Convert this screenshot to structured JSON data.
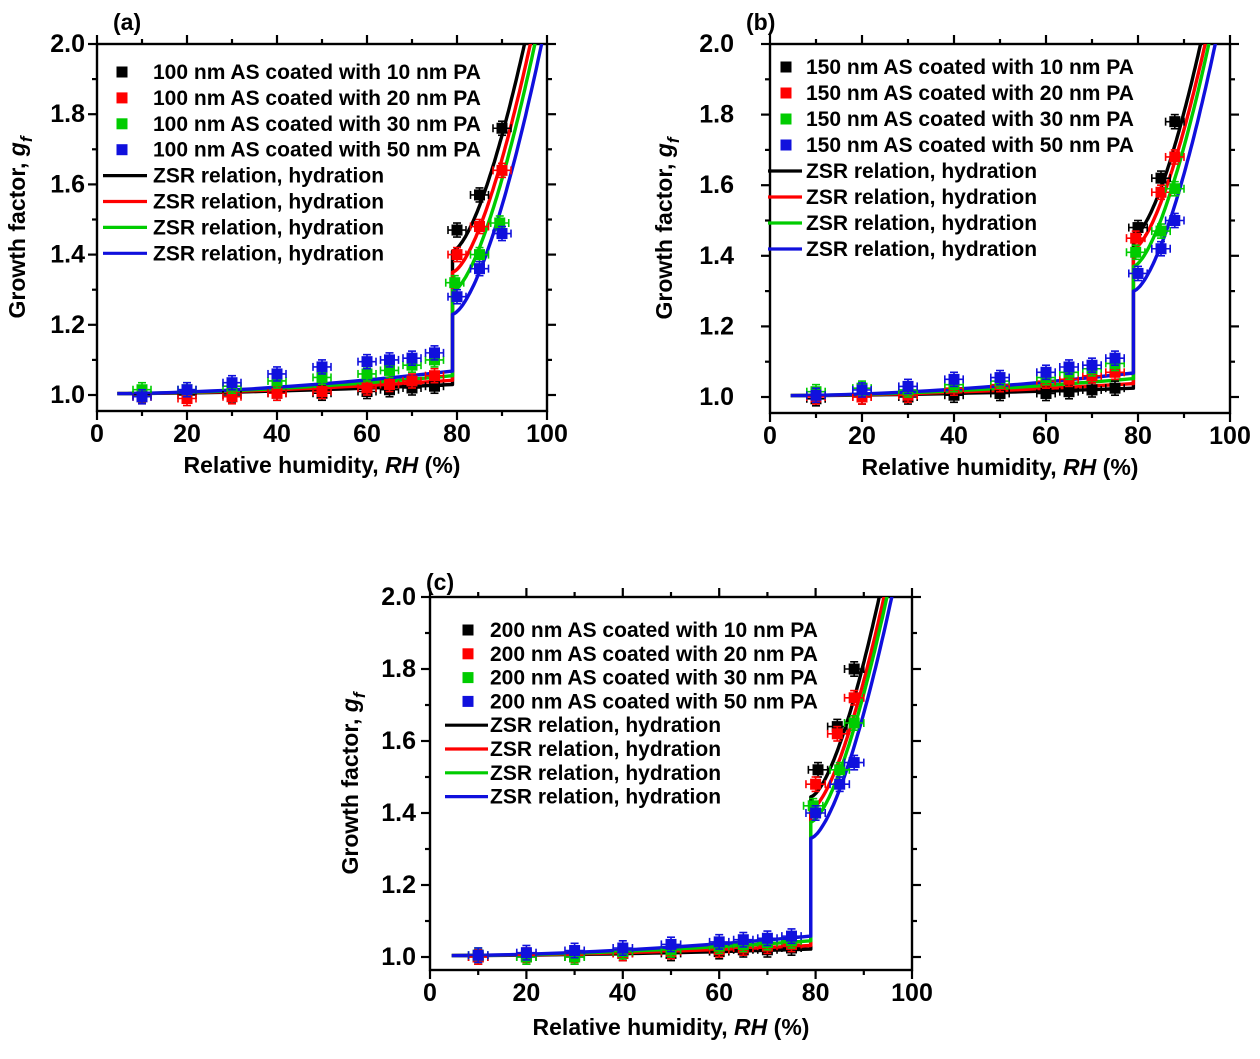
{
  "figure": {
    "background": "#ffffff",
    "description": "Hygroscopic growth factor versus relative humidity for ammonium sulfate (AS) particles coated with palmitic acid (PA); three panels for 100, 150 and 200 nm AS cores"
  },
  "colors": {
    "series1": "#000000",
    "series2": "#ff0000",
    "series3": "#00cc00",
    "series4": "#1010dd"
  },
  "chart_data": [
    {
      "type": "line+scatter",
      "panel_label": "(a)",
      "xlabel": "Relative humidity, RH (%)",
      "xlabel_parts": [
        {
          "t": "Relative humidity, "
        },
        {
          "t": "RH",
          "italic": true
        },
        {
          "t": " (%)"
        }
      ],
      "ylabel": "Growth factor, g_f",
      "ylabel_parts": [
        {
          "t": "Growth factor, "
        },
        {
          "t": "g",
          "italic": true
        },
        {
          "t": "f",
          "italic": true,
          "sub": true
        }
      ],
      "xlim": [
        0,
        100
      ],
      "ylim": [
        0.955,
        2.0
      ],
      "x_major_ticks": [
        0,
        20,
        40,
        60,
        80,
        100
      ],
      "x_minor_ticks": [
        10,
        30,
        50,
        70,
        90
      ],
      "y_major_ticks": [
        1.0,
        1.2,
        1.4,
        1.6,
        1.8,
        2.0
      ],
      "y_minor_ticks": [
        1.1,
        1.3,
        1.5,
        1.7,
        1.9
      ],
      "grid": false,
      "legend_position": "top-left-inside",
      "scatter_series": [
        {
          "label": "100 nm AS coated with 10 nm PA",
          "color": "#000000",
          "marker": "square",
          "x_err": 2,
          "y_err": 0.02,
          "points": [
            [
              10,
              1.0
            ],
            [
              20,
              1.0
            ],
            [
              30,
              1.0
            ],
            [
              40,
              1.005
            ],
            [
              50,
              1.005
            ],
            [
              60,
              1.01
            ],
            [
              65,
              1.015
            ],
            [
              70,
              1.02
            ],
            [
              75,
              1.025
            ],
            [
              80,
              1.47
            ],
            [
              85,
              1.57
            ],
            [
              90,
              1.76
            ]
          ]
        },
        {
          "label": "100 nm AS coated with 20 nm PA",
          "color": "#ff0000",
          "marker": "square",
          "x_err": 2,
          "y_err": 0.02,
          "points": [
            [
              10,
              0.995
            ],
            [
              20,
              0.99
            ],
            [
              30,
              0.995
            ],
            [
              40,
              1.005
            ],
            [
              50,
              1.01
            ],
            [
              60,
              1.02
            ],
            [
              65,
              1.03
            ],
            [
              70,
              1.04
            ],
            [
              75,
              1.055
            ],
            [
              80,
              1.4
            ],
            [
              85,
              1.48
            ],
            [
              90,
              1.64
            ]
          ]
        },
        {
          "label": "100 nm AS coated with 30 nm PA",
          "color": "#00cc00",
          "marker": "square",
          "x_err": 2,
          "y_err": 0.02,
          "points": [
            [
              10,
              1.015
            ],
            [
              20,
              1.015
            ],
            [
              30,
              1.025
            ],
            [
              40,
              1.04
            ],
            [
              50,
              1.05
            ],
            [
              60,
              1.06
            ],
            [
              65,
              1.07
            ],
            [
              70,
              1.085
            ],
            [
              75,
              1.1
            ],
            [
              79.5,
              1.32
            ],
            [
              85,
              1.4
            ],
            [
              89.5,
              1.49
            ]
          ]
        },
        {
          "label": "100 nm AS coated with 50 nm PA",
          "color": "#1010dd",
          "marker": "square",
          "x_err": 2,
          "y_err": 0.02,
          "points": [
            [
              10,
              0.995
            ],
            [
              20,
              1.015
            ],
            [
              30,
              1.035
            ],
            [
              40,
              1.06
            ],
            [
              50,
              1.08
            ],
            [
              60,
              1.095
            ],
            [
              65,
              1.1
            ],
            [
              70,
              1.105
            ],
            [
              75,
              1.12
            ],
            [
              80,
              1.28
            ],
            [
              85,
              1.36
            ],
            [
              90,
              1.46
            ]
          ]
        }
      ],
      "line_series": [
        {
          "label": "ZSR relation, hydration",
          "color": "#000000",
          "rh_start": 4.5,
          "gf_start": 1.004,
          "deliquescence_rh": 79,
          "gf_before_del": 1.03,
          "gf_after_del": 1.41,
          "rh_at_gf2": 95.0
        },
        {
          "label": "ZSR relation, hydration",
          "color": "#ff0000",
          "rh_start": 4.5,
          "gf_start": 1.004,
          "deliquescence_rh": 79,
          "gf_before_del": 1.042,
          "gf_after_del": 1.35,
          "rh_at_gf2": 96.3
        },
        {
          "label": "ZSR relation, hydration",
          "color": "#00cc00",
          "rh_start": 4.5,
          "gf_start": 1.004,
          "deliquescence_rh": 79,
          "gf_before_del": 1.055,
          "gf_after_del": 1.295,
          "rh_at_gf2": 97.3
        },
        {
          "label": "ZSR relation, hydration",
          "color": "#1010dd",
          "rh_start": 4.5,
          "gf_start": 1.004,
          "deliquescence_rh": 79,
          "gf_before_del": 1.068,
          "gf_after_del": 1.23,
          "rh_at_gf2": 98.8
        }
      ]
    },
    {
      "type": "line+scatter",
      "panel_label": "(b)",
      "xlabel": "Relative humidity, RH (%)",
      "xlabel_parts": [
        {
          "t": "Relative humidity, "
        },
        {
          "t": "RH",
          "italic": true
        },
        {
          "t": " (%)"
        }
      ],
      "ylabel": "Growth factor, g_f",
      "ylabel_parts": [
        {
          "t": "Growth factor, "
        },
        {
          "t": "g",
          "italic": true
        },
        {
          "t": "f",
          "italic": true,
          "sub": true
        }
      ],
      "xlim": [
        0,
        100
      ],
      "ylim": [
        0.955,
        2.0
      ],
      "x_major_ticks": [
        0,
        20,
        40,
        60,
        80,
        100
      ],
      "x_minor_ticks": [
        10,
        30,
        50,
        70,
        90
      ],
      "y_major_ticks": [
        1.0,
        1.2,
        1.4,
        1.6,
        1.8,
        2.0
      ],
      "y_minor_ticks": [
        1.1,
        1.3,
        1.5,
        1.7,
        1.9
      ],
      "grid": false,
      "legend_position": "top-left-inside",
      "scatter_series": [
        {
          "label": "150 nm AS coated with 10 nm PA",
          "color": "#000000",
          "marker": "square",
          "x_err": 2,
          "y_err": 0.02,
          "points": [
            [
              10,
              0.995
            ],
            [
              20,
              1.0
            ],
            [
              30,
              1.0
            ],
            [
              40,
              1.005
            ],
            [
              50,
              1.01
            ],
            [
              60,
              1.01
            ],
            [
              65,
              1.015
            ],
            [
              70,
              1.02
            ],
            [
              75,
              1.025
            ],
            [
              80,
              1.48
            ],
            [
              85,
              1.62
            ],
            [
              88,
              1.78
            ]
          ]
        },
        {
          "label": "150 nm AS coated with 20 nm PA",
          "color": "#ff0000",
          "marker": "square",
          "x_err": 2,
          "y_err": 0.02,
          "points": [
            [
              10,
              1.0
            ],
            [
              20,
              1.0
            ],
            [
              30,
              1.005
            ],
            [
              40,
              1.025
            ],
            [
              50,
              1.035
            ],
            [
              60,
              1.045
            ],
            [
              65,
              1.05
            ],
            [
              70,
              1.06
            ],
            [
              75,
              1.07
            ],
            [
              79.5,
              1.45
            ],
            [
              85,
              1.58
            ],
            [
              88,
              1.68
            ]
          ]
        },
        {
          "label": "150 nm AS coated with 30 nm PA",
          "color": "#00cc00",
          "marker": "square",
          "x_err": 2,
          "y_err": 0.02,
          "points": [
            [
              10,
              1.015
            ],
            [
              20,
              1.025
            ],
            [
              30,
              1.02
            ],
            [
              40,
              1.035
            ],
            [
              50,
              1.045
            ],
            [
              60,
              1.055
            ],
            [
              65,
              1.07
            ],
            [
              70,
              1.08
            ],
            [
              75,
              1.095
            ],
            [
              79.5,
              1.41
            ],
            [
              85,
              1.47
            ],
            [
              88,
              1.59
            ]
          ]
        },
        {
          "label": "150 nm AS coated with 50 nm PA",
          "color": "#1010dd",
          "marker": "square",
          "x_err": 2,
          "y_err": 0.02,
          "points": [
            [
              10,
              1.005
            ],
            [
              20,
              1.02
            ],
            [
              30,
              1.03
            ],
            [
              40,
              1.05
            ],
            [
              50,
              1.055
            ],
            [
              60,
              1.07
            ],
            [
              65,
              1.085
            ],
            [
              70,
              1.09
            ],
            [
              75,
              1.11
            ],
            [
              80,
              1.35
            ],
            [
              85,
              1.42
            ],
            [
              88,
              1.5
            ]
          ]
        }
      ],
      "line_series": [
        {
          "label": "ZSR relation, hydration",
          "color": "#000000",
          "rh_start": 4.5,
          "gf_start": 1.004,
          "deliquescence_rh": 79,
          "gf_before_del": 1.025,
          "gf_after_del": 1.455,
          "rh_at_gf2": 93.6
        },
        {
          "label": "ZSR relation, hydration",
          "color": "#ff0000",
          "rh_start": 4.5,
          "gf_start": 1.004,
          "deliquescence_rh": 79,
          "gf_before_del": 1.038,
          "gf_after_del": 1.42,
          "rh_at_gf2": 94.6
        },
        {
          "label": "ZSR relation, hydration",
          "color": "#00cc00",
          "rh_start": 4.5,
          "gf_start": 1.004,
          "deliquescence_rh": 79,
          "gf_before_del": 1.052,
          "gf_after_del": 1.37,
          "rh_at_gf2": 95.4
        },
        {
          "label": "ZSR relation, hydration",
          "color": "#1010dd",
          "rh_start": 4.5,
          "gf_start": 1.004,
          "deliquescence_rh": 79,
          "gf_before_del": 1.068,
          "gf_after_del": 1.3,
          "rh_at_gf2": 96.8
        }
      ]
    },
    {
      "type": "line+scatter",
      "panel_label": "(c)",
      "xlabel": "Relative humidity, RH (%)",
      "xlabel_parts": [
        {
          "t": "Relative humidity, "
        },
        {
          "t": "RH",
          "italic": true
        },
        {
          "t": " (%)"
        }
      ],
      "ylabel": "Growth factor, g_f",
      "ylabel_parts": [
        {
          "t": "Growth factor, "
        },
        {
          "t": "g",
          "italic": true
        },
        {
          "t": "f",
          "italic": true,
          "sub": true
        }
      ],
      "xlim": [
        0,
        100
      ],
      "ylim": [
        0.955,
        2.0
      ],
      "x_major_ticks": [
        0,
        20,
        40,
        60,
        80,
        100
      ],
      "x_minor_ticks": [
        10,
        30,
        50,
        70,
        90
      ],
      "y_major_ticks": [
        1.0,
        1.2,
        1.4,
        1.6,
        1.8,
        2.0
      ],
      "y_minor_ticks": [
        1.1,
        1.3,
        1.5,
        1.7,
        1.9
      ],
      "grid": false,
      "legend_position": "top-left-inside",
      "scatter_series": [
        {
          "label": "200 nm AS coated with 10 nm PA",
          "color": "#000000",
          "marker": "square",
          "x_err": 2,
          "y_err": 0.02,
          "points": [
            [
              10,
              1.0
            ],
            [
              20,
              1.0
            ],
            [
              30,
              1.0
            ],
            [
              40,
              1.01
            ],
            [
              50,
              1.01
            ],
            [
              60,
              1.015
            ],
            [
              65,
              1.02
            ],
            [
              70,
              1.02
            ],
            [
              75,
              1.025
            ],
            [
              80.5,
              1.52
            ],
            [
              84.5,
              1.64
            ],
            [
              88,
              1.8
            ]
          ]
        },
        {
          "label": "200 nm AS coated with 20 nm PA",
          "color": "#ff0000",
          "marker": "square",
          "x_err": 2,
          "y_err": 0.02,
          "points": [
            [
              10,
              1.0
            ],
            [
              20,
              1.005
            ],
            [
              30,
              1.005
            ],
            [
              40,
              1.01
            ],
            [
              50,
              1.015
            ],
            [
              60,
              1.02
            ],
            [
              65,
              1.025
            ],
            [
              70,
              1.03
            ],
            [
              75,
              1.035
            ],
            [
              80,
              1.48
            ],
            [
              84.5,
              1.62
            ],
            [
              88,
              1.72
            ]
          ]
        },
        {
          "label": "200 nm AS coated with 30 nm PA",
          "color": "#00cc00",
          "marker": "square",
          "x_err": 2,
          "y_err": 0.02,
          "points": [
            [
              10,
              1.005
            ],
            [
              20,
              1.0
            ],
            [
              30,
              1.0
            ],
            [
              40,
              1.015
            ],
            [
              50,
              1.02
            ],
            [
              60,
              1.03
            ],
            [
              65,
              1.035
            ],
            [
              70,
              1.04
            ],
            [
              75,
              1.045
            ],
            [
              79.5,
              1.42
            ],
            [
              85,
              1.52
            ],
            [
              88,
              1.65
            ]
          ]
        },
        {
          "label": "200 nm AS coated with 50 nm PA",
          "color": "#1010dd",
          "marker": "square",
          "x_err": 2,
          "y_err": 0.02,
          "points": [
            [
              10,
              1.005
            ],
            [
              20,
              1.012
            ],
            [
              30,
              1.018
            ],
            [
              40,
              1.025
            ],
            [
              50,
              1.035
            ],
            [
              60,
              1.042
            ],
            [
              65,
              1.048
            ],
            [
              70,
              1.052
            ],
            [
              75,
              1.058
            ],
            [
              80,
              1.4
            ],
            [
              85,
              1.48
            ],
            [
              88,
              1.54
            ]
          ]
        }
      ],
      "line_series": [
        {
          "label": "ZSR relation, hydration",
          "color": "#000000",
          "rh_start": 4.5,
          "gf_start": 1.004,
          "deliquescence_rh": 79,
          "gf_before_del": 1.022,
          "gf_after_del": 1.445,
          "rh_at_gf2": 93.2
        },
        {
          "label": "ZSR relation, hydration",
          "color": "#ff0000",
          "rh_start": 4.5,
          "gf_start": 1.004,
          "deliquescence_rh": 79,
          "gf_before_del": 1.032,
          "gf_after_del": 1.41,
          "rh_at_gf2": 94.2
        },
        {
          "label": "ZSR relation, hydration",
          "color": "#00cc00",
          "rh_start": 4.5,
          "gf_start": 1.004,
          "deliquescence_rh": 79,
          "gf_before_del": 1.045,
          "gf_after_del": 1.375,
          "rh_at_gf2": 94.8
        },
        {
          "label": "ZSR relation, hydration",
          "color": "#1010dd",
          "rh_start": 4.5,
          "gf_start": 1.004,
          "deliquescence_rh": 79,
          "gf_before_del": 1.058,
          "gf_after_del": 1.33,
          "rh_at_gf2": 95.8
        }
      ]
    }
  ]
}
